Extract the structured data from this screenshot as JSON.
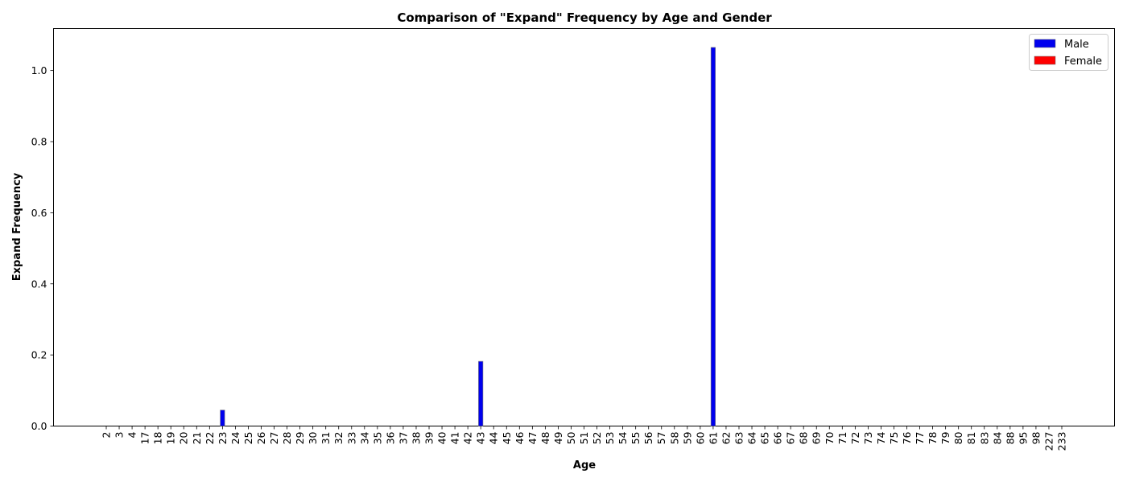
{
  "chart_data": {
    "type": "bar",
    "title": "Comparison of \"Expand\" Frequency by Age and Gender",
    "xlabel": "Age",
    "ylabel": "Expand Frequency",
    "categories": [
      "2",
      "3",
      "4",
      "17",
      "18",
      "19",
      "20",
      "21",
      "22",
      "23",
      "24",
      "25",
      "26",
      "27",
      "28",
      "29",
      "30",
      "31",
      "32",
      "33",
      "34",
      "35",
      "36",
      "37",
      "38",
      "39",
      "40",
      "41",
      "42",
      "43",
      "44",
      "45",
      "46",
      "47",
      "48",
      "49",
      "50",
      "51",
      "52",
      "53",
      "54",
      "55",
      "56",
      "57",
      "58",
      "59",
      "60",
      "61",
      "62",
      "63",
      "64",
      "65",
      "66",
      "67",
      "68",
      "69",
      "70",
      "71",
      "72",
      "73",
      "74",
      "75",
      "76",
      "77",
      "78",
      "79",
      "80",
      "81",
      "83",
      "84",
      "88",
      "95",
      "98",
      "227",
      "233"
    ],
    "series": [
      {
        "name": "Male",
        "color": "#0000ee",
        "values": [
          0,
          0,
          0,
          0,
          0,
          0,
          0,
          0,
          0,
          0.045,
          0,
          0,
          0,
          0,
          0,
          0,
          0,
          0,
          0,
          0,
          0,
          0,
          0,
          0,
          0,
          0,
          0,
          0,
          0,
          0.182,
          0,
          0,
          0,
          0,
          0,
          0,
          0,
          0,
          0,
          0,
          0,
          0,
          0,
          0,
          0,
          0,
          0,
          1.065,
          0,
          0,
          0,
          0,
          0,
          0,
          0,
          0,
          0,
          0,
          0,
          0,
          0,
          0,
          0,
          0,
          0,
          0,
          0,
          0,
          0,
          0,
          0,
          0,
          0,
          0,
          0
        ]
      },
      {
        "name": "Female",
        "color": "#ff0000",
        "values": [
          0,
          0,
          0,
          0,
          0,
          0,
          0,
          0,
          0,
          0,
          0,
          0,
          0,
          0,
          0,
          0,
          0,
          0,
          0,
          0,
          0,
          0,
          0,
          0,
          0,
          0,
          0,
          0,
          0,
          0,
          0,
          0,
          0,
          0,
          0,
          0,
          0,
          0,
          0,
          0,
          0,
          0,
          0,
          0,
          0,
          0,
          0,
          0,
          0,
          0,
          0,
          0,
          0,
          0,
          0,
          0,
          0,
          0,
          0,
          0,
          0,
          0,
          0,
          0,
          0,
          0,
          0,
          0,
          0,
          0,
          0,
          0,
          0,
          0,
          0
        ]
      }
    ],
    "ylim": [
      0,
      1.118
    ],
    "yticks": [
      "0.0",
      "0.2",
      "0.4",
      "0.6",
      "0.8",
      "1.0"
    ],
    "legend_position": "top-right",
    "grid": false
  }
}
